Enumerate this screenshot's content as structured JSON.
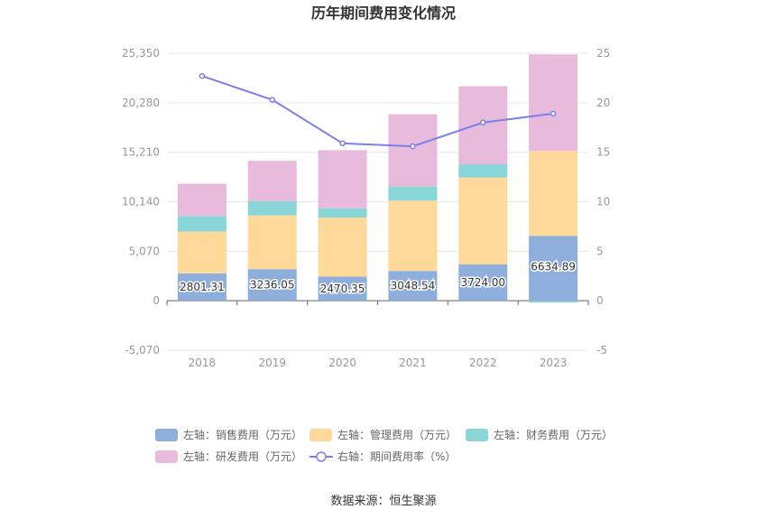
{
  "chart_data": {
    "type": "bar",
    "stacked": true,
    "title": "历年期间费用变化情况",
    "categories": [
      "2018",
      "2019",
      "2020",
      "2021",
      "2022",
      "2023"
    ],
    "left_axis": {
      "ticks": [
        "25,350",
        "20,280",
        "15,210",
        "10,140",
        "5,070",
        "0",
        "-5,070"
      ],
      "ylim": [
        -5070,
        25350
      ]
    },
    "right_axis": {
      "ticks": [
        "25",
        "20",
        "15",
        "10",
        "5",
        "0",
        "-5"
      ],
      "ylim": [
        -5,
        25
      ]
    },
    "series": [
      {
        "name": "左轴：销售费用（万元）",
        "color": "#8eaedb",
        "axis": "left",
        "values": [
          2801.31,
          3236.05,
          2470.35,
          3048.54,
          3724.0,
          6634.89
        ],
        "labels": [
          "2801.31",
          "3236.05",
          "2470.35",
          "3048.54",
          "3724.00",
          "6634.89"
        ]
      },
      {
        "name": "左轴：管理费用（万元）",
        "color": "#ffd999",
        "axis": "left",
        "values": [
          4280,
          5500,
          6050,
          7200,
          8900,
          8700
        ]
      },
      {
        "name": "左轴：财务费用（万元）",
        "color": "#88d6d8",
        "axis": "left",
        "values": [
          1600,
          1450,
          950,
          1450,
          1350,
          -180
        ]
      },
      {
        "name": "左轴：研发费用（万元）",
        "color": "#e8bbdc",
        "axis": "left",
        "values": [
          3300,
          4150,
          5950,
          7400,
          8000,
          9900
        ]
      },
      {
        "name": "右轴：期间费用率（%）",
        "color": "#7b7fec",
        "axis": "right",
        "type": "line",
        "values": [
          22.7,
          20.3,
          15.9,
          15.6,
          18.0,
          18.9
        ]
      }
    ],
    "legend": {
      "position": "bottom"
    },
    "source": "数据来源：恒生聚源"
  }
}
